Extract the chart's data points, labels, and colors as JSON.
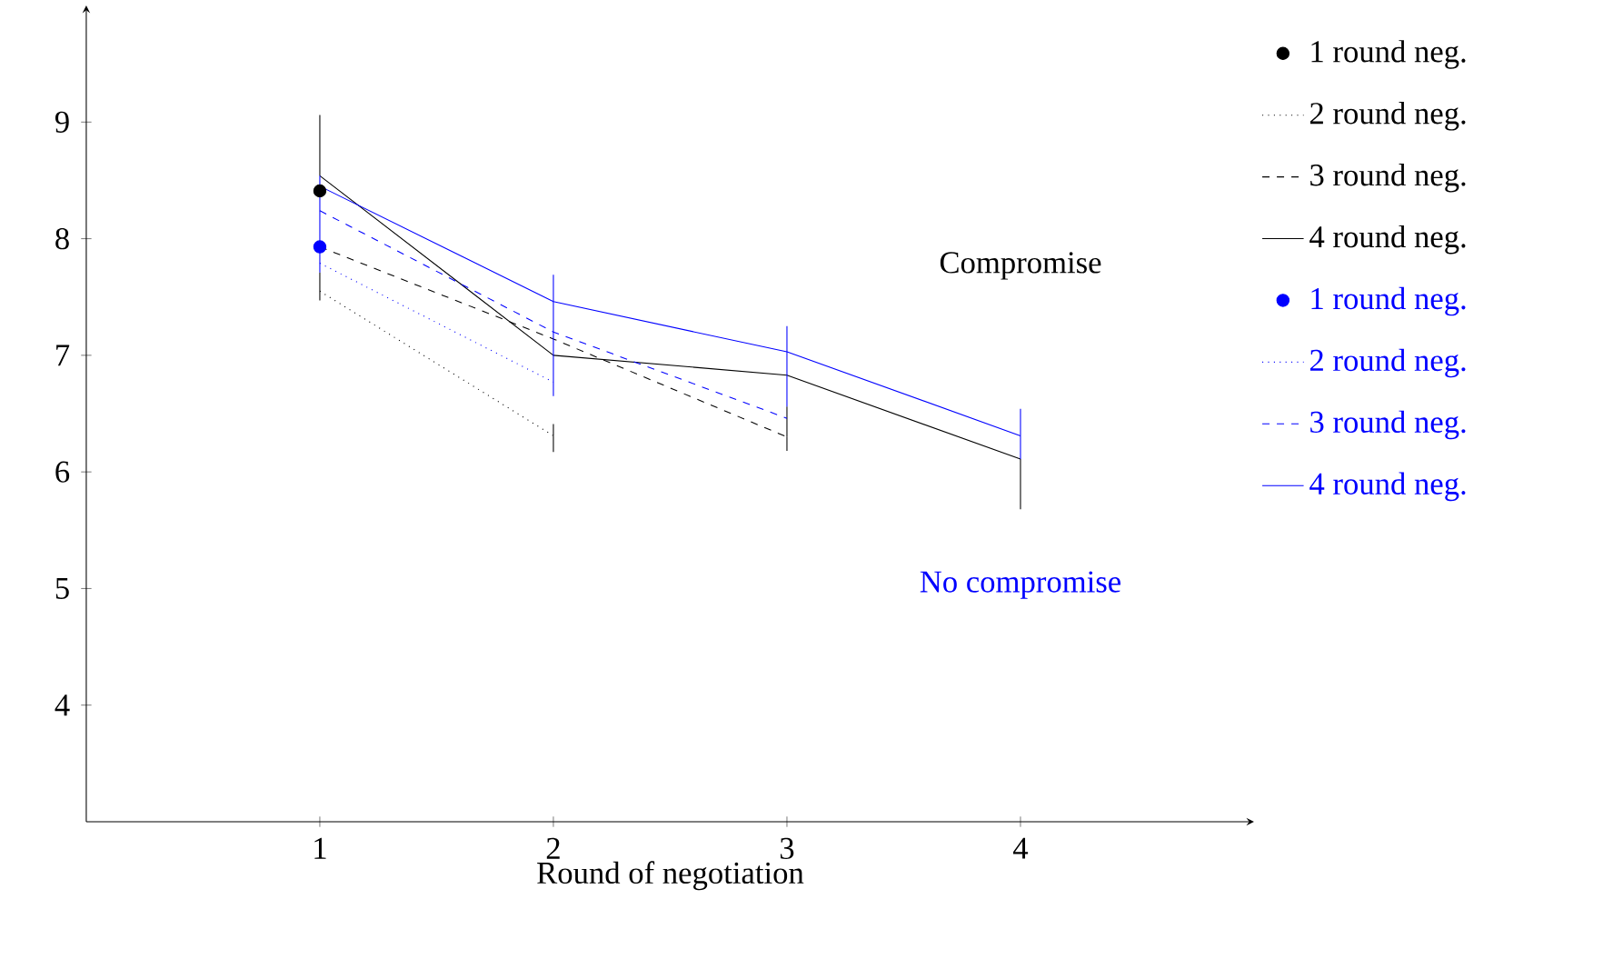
{
  "chart_data": {
    "type": "line",
    "xlabel": "Round of negotiation",
    "xlim": [
      0,
      5
    ],
    "ylim": [
      3,
      10
    ],
    "xticks": [
      1,
      2,
      3,
      4
    ],
    "yticks": [
      4,
      5,
      6,
      7,
      8,
      9
    ],
    "legend": "right",
    "grid": false,
    "annotations": [
      "Compromise",
      "No compromise"
    ],
    "series": [
      {
        "name": "1 round neg.",
        "color": "#000000",
        "type": "scatter",
        "marker": "circle",
        "x": [
          1
        ],
        "values": [
          8.41
        ]
      },
      {
        "name": "2 round neg.",
        "color": "#000000",
        "line_style": "dotted",
        "marker": "none",
        "x": [
          1,
          2
        ],
        "values": [
          7.55,
          6.31
        ],
        "errors": [
          [
            7.47,
            7.71
          ],
          [
            6.17,
            6.41
          ]
        ]
      },
      {
        "name": "3 round neg.",
        "color": "#000000",
        "line_style": "dashed",
        "marker": "none",
        "x": [
          1,
          2,
          3
        ],
        "values": [
          7.93,
          7.14,
          6.3
        ],
        "errors": [
          null,
          null,
          [
            6.18,
            6.56
          ]
        ]
      },
      {
        "name": "4 round neg.",
        "color": "#000000",
        "line_style": "solid",
        "marker": "none",
        "x": [
          1,
          2,
          3,
          4
        ],
        "values": [
          8.54,
          7.0,
          6.83,
          6.11
        ],
        "errors": [
          [
            8.54,
            9.06
          ],
          null,
          null,
          [
            5.68,
            6.11
          ]
        ]
      },
      {
        "name": "1 round neg.",
        "color": "#0000ff",
        "type": "scatter",
        "marker": "circle",
        "x": [
          1
        ],
        "values": [
          7.93
        ]
      },
      {
        "name": "2 round neg.",
        "color": "#0000ff",
        "line_style": "dotted",
        "marker": "none",
        "x": [
          1,
          2
        ],
        "values": [
          7.79,
          6.77
        ]
      },
      {
        "name": "3 round neg.",
        "color": "#0000ff",
        "line_style": "dashed",
        "marker": "none",
        "x": [
          1,
          2,
          3
        ],
        "values": [
          8.24,
          7.2,
          6.46
        ],
        "errors": [
          null,
          [
            6.65,
            7.69
          ],
          null
        ]
      },
      {
        "name": "4 round neg.",
        "color": "#0000ff",
        "line_style": "solid",
        "marker": "none",
        "x": [
          1,
          2,
          3,
          4
        ],
        "values": [
          8.45,
          7.46,
          7.03,
          6.31
        ],
        "errors": [
          [
            7.71,
            8.54
          ],
          null,
          [
            6.56,
            7.25
          ],
          [
            6.11,
            6.54
          ]
        ]
      }
    ]
  }
}
